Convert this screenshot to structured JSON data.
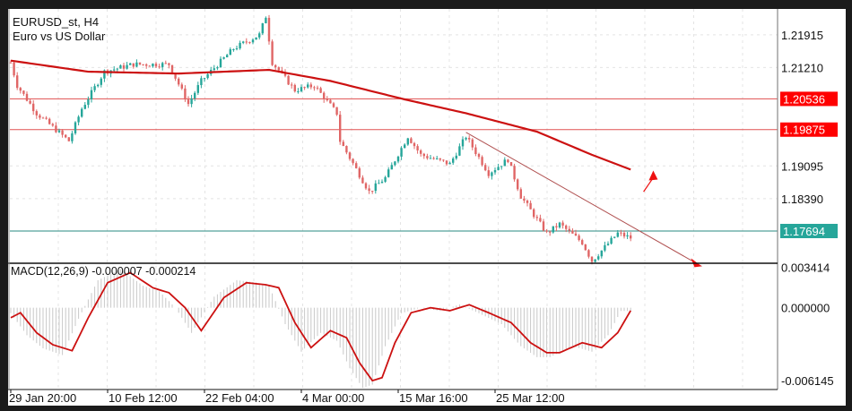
{
  "header": {
    "symbol": "EURUSD_st, H4",
    "description": "Euro vs US Dollar"
  },
  "colors": {
    "bull": "#26a69a",
    "bear": "#e06666",
    "ma": "#cc1111",
    "level_red": "#ff0000",
    "level_teal": "#26a69a",
    "histogram": "#c8c8c8"
  },
  "chart_data": [
    {
      "type": "candlestick",
      "title": "EURUSD_st, H4",
      "ylim": [
        1.1702,
        1.2247
      ],
      "price_ticks": [
        "1.21915",
        "1.21210",
        "1.19095",
        "1.18390"
      ],
      "price_tick_values": [
        1.21915,
        1.2121,
        1.19095,
        1.1839
      ],
      "x_tick_labels": [
        "29 Jan 20:00",
        "10 Feb 12:00",
        "22 Feb 04:00",
        "4 Mar 00:00",
        "15 Mar 16:00",
        "25 Mar 12:00"
      ],
      "x_tick_bars": [
        0,
        30,
        60,
        90,
        120,
        150
      ],
      "bar_count": 193,
      "close_waypoints": [
        [
          0,
          1.21319
        ],
        [
          2,
          1.20823
        ],
        [
          8,
          1.20227
        ],
        [
          18,
          1.19631
        ],
        [
          22,
          1.20326
        ],
        [
          29,
          1.21121
        ],
        [
          38,
          1.21279
        ],
        [
          49,
          1.21279
        ],
        [
          55,
          1.20426
        ],
        [
          59,
          1.20922
        ],
        [
          69,
          1.21617
        ],
        [
          77,
          1.21915
        ],
        [
          79,
          1.22312
        ],
        [
          81,
          1.21319
        ],
        [
          88,
          1.20723
        ],
        [
          94,
          1.20823
        ],
        [
          101,
          1.20227
        ],
        [
          102,
          1.19631
        ],
        [
          111,
          1.18539
        ],
        [
          116,
          1.18837
        ],
        [
          123,
          1.1973
        ],
        [
          127,
          1.19333
        ],
        [
          136,
          1.19135
        ],
        [
          141,
          1.1973
        ],
        [
          148,
          1.18936
        ],
        [
          154,
          1.19234
        ],
        [
          158,
          1.1844
        ],
        [
          166,
          1.17645
        ],
        [
          170,
          1.17844
        ],
        [
          177,
          1.17447
        ],
        [
          180,
          1.1705
        ],
        [
          188,
          1.17645
        ],
        [
          192,
          1.17546
        ]
      ],
      "moving_average": [
        [
          0,
          1.21359
        ],
        [
          24,
          1.21121
        ],
        [
          52,
          1.21081
        ],
        [
          80,
          1.2116
        ],
        [
          99,
          1.20922
        ],
        [
          122,
          1.20525
        ],
        [
          141,
          1.20227
        ],
        [
          163,
          1.1983
        ],
        [
          180,
          1.19333
        ],
        [
          192,
          1.19015
        ]
      ],
      "levels": [
        {
          "label": "1.20536",
          "value": 1.20536,
          "color": "red"
        },
        {
          "label": "1.19875",
          "value": 1.19875,
          "color": "red"
        },
        {
          "label": "1.17694",
          "value": 1.17694,
          "color": "teal"
        }
      ],
      "trendline": {
        "from": [
          141,
          1.19815
        ],
        "to": [
          214,
          1.16935
        ]
      },
      "arrow_up": {
        "from": [
          196,
          1.18539
        ],
        "to": [
          199,
          1.18995
        ]
      }
    },
    {
      "type": "macd",
      "label": "MACD(12,26,9) -0.000007 -0.000214",
      "params": "12,26,9",
      "main_value": -7e-06,
      "signal_value": -0.000214,
      "ylim": [
        -0.00635,
        0.00345
      ],
      "ticks": [
        "0.003414",
        "0.000000",
        "-0.006145"
      ],
      "tick_values": [
        0.003414,
        0,
        -0.006145
      ],
      "signal_waypoints": [
        [
          0,
          -0.00078
        ],
        [
          3,
          -0.00039
        ],
        [
          8,
          -0.00194
        ],
        [
          13,
          -0.00287
        ],
        [
          19,
          -0.00334
        ],
        [
          24,
          -0.00078
        ],
        [
          30,
          0.00194
        ],
        [
          37,
          0.00272
        ],
        [
          44,
          0.00155
        ],
        [
          49,
          0.00116
        ],
        [
          54,
          0
        ],
        [
          59,
          -0.00178
        ],
        [
          66,
          0.00078
        ],
        [
          73,
          0.00194
        ],
        [
          79,
          0.00178
        ],
        [
          83,
          0.00155
        ],
        [
          88,
          -0.00116
        ],
        [
          93,
          -0.0031
        ],
        [
          99,
          -0.00178
        ],
        [
          104,
          -0.00233
        ],
        [
          108,
          -0.00427
        ],
        [
          112,
          -0.00566
        ],
        [
          115,
          -0.00543
        ],
        [
          119,
          -0.00272
        ],
        [
          124,
          -0.00039
        ],
        [
          130,
          0
        ],
        [
          136,
          -0.00023
        ],
        [
          142,
          0.00023
        ],
        [
          148,
          -0.00039
        ],
        [
          155,
          -0.00116
        ],
        [
          161,
          -0.00272
        ],
        [
          166,
          -0.00349
        ],
        [
          170,
          -0.00349
        ],
        [
          177,
          -0.00272
        ],
        [
          183,
          -0.0031
        ],
        [
          188,
          -0.00194
        ],
        [
          192,
          -0.00023
        ]
      ]
    }
  ]
}
